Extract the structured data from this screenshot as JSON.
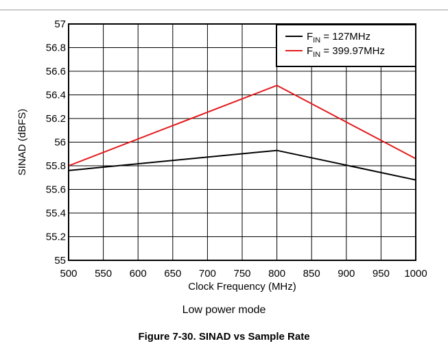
{
  "caption": "Low power mode",
  "figure_title": "Figure 7-30. SINAD vs Sample Rate",
  "chart_data": {
    "type": "line",
    "xlabel": "Clock Frequency (MHz)",
    "ylabel": "SINAD (dBFS)",
    "xlim": [
      500,
      1000
    ],
    "ylim": [
      55,
      57
    ],
    "xticks": [
      500,
      550,
      600,
      650,
      700,
      750,
      800,
      850,
      900,
      950,
      1000
    ],
    "yticks": [
      "55",
      "55.2",
      "55.4",
      "55.6",
      "55.8",
      "56",
      "56.2",
      "56.4",
      "56.6",
      "56.8",
      "57"
    ],
    "grid": true,
    "legend_position": "top-right",
    "series": [
      {
        "name_main": "F",
        "name_sub": "IN",
        "name_rest": " = 127MHz",
        "color": "#000000",
        "x": [
          500,
          800,
          1000
        ],
        "y": [
          55.76,
          55.93,
          55.68
        ]
      },
      {
        "name_main": "F",
        "name_sub": "IN",
        "name_rest": " = 399.97MHz",
        "color": "#e31a1c",
        "x": [
          500,
          800,
          1000
        ],
        "y": [
          55.8,
          56.48,
          55.86
        ]
      }
    ]
  }
}
